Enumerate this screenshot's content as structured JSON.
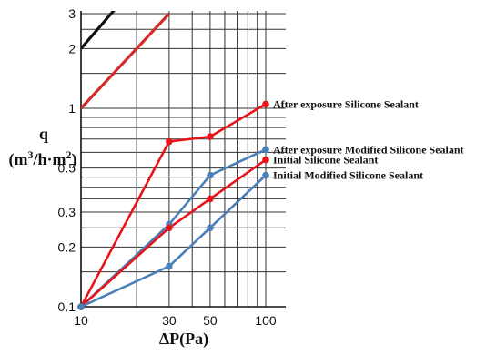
{
  "chart_data": {
    "type": "line",
    "xscale": "log",
    "yscale": "log",
    "xlim": [
      10,
      100
    ],
    "ylim": [
      0.1,
      3
    ],
    "x_ticks": [
      10,
      30,
      50,
      100
    ],
    "y_ticks": [
      0.1,
      0.2,
      0.3,
      0.5,
      1,
      2,
      3
    ],
    "y_axis_label_line1": "q",
    "y_axis_label_line2_parts": [
      "(m",
      "3",
      "/h·m",
      "2",
      ")"
    ],
    "xlabel": "ΔP(Pa)",
    "grid": true,
    "background_reference_lines": [
      {
        "color": "#111111",
        "points": [
          [
            10,
            2
          ],
          [
            15.9,
            3.3
          ]
        ]
      },
      {
        "color": "#d42a2a",
        "points": [
          [
            10,
            1
          ],
          [
            30,
            3
          ]
        ]
      }
    ],
    "series": [
      {
        "name": "After exposure  Silicone Sealant",
        "color": "#e8141a",
        "x": [
          10,
          30,
          50,
          100
        ],
        "y": [
          0.1,
          0.68,
          0.72,
          1.05
        ]
      },
      {
        "name": "After exposure  Modified Silicone Sealant",
        "color": "#4a7fb8",
        "x": [
          10,
          30,
          50,
          100
        ],
        "y": [
          0.1,
          0.26,
          0.46,
          0.62
        ]
      },
      {
        "name": "Initial Silicone Sealant",
        "color": "#e8141a",
        "x": [
          10,
          30,
          50,
          100
        ],
        "y": [
          0.1,
          0.25,
          0.35,
          0.55
        ]
      },
      {
        "name": "Initial Modified Silicone Sealant",
        "color": "#4a7fb8",
        "x": [
          10,
          30,
          50,
          100
        ],
        "y": [
          0.1,
          0.16,
          0.25,
          0.46
        ]
      }
    ]
  }
}
